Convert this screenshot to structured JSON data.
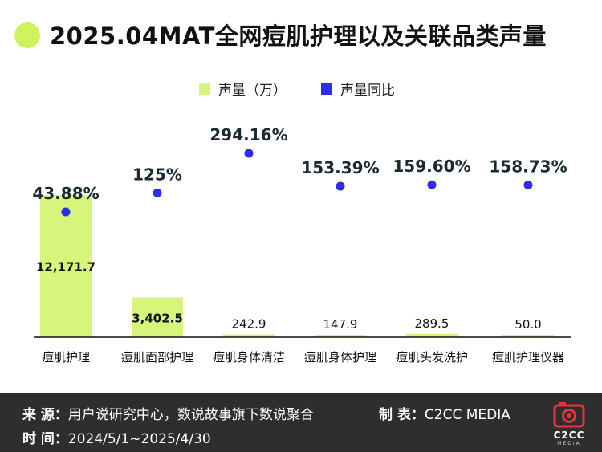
{
  "header": {
    "title": "2025.04MAT全网痘肌护理以及关联品类声量"
  },
  "legend": {
    "volume_label": "声量（万）",
    "yoy_label": "声量同比"
  },
  "colors": {
    "bar": "#d7f57a",
    "dot": "#2e2ee6",
    "accent": "#cdf45c",
    "footer_bg": "#2e2e2e"
  },
  "chart_data": {
    "type": "bar",
    "title": "2025.04MAT全网痘肌护理以及关联品类声量",
    "categories": [
      "痘肌护理",
      "痘肌面部护理",
      "痘肌身体清洁",
      "痘肌身体护理",
      "痘肌头发洗护",
      "痘肌护理仪器"
    ],
    "series": [
      {
        "name": "声量（万）",
        "type": "bar",
        "values": [
          12171.7,
          3402.5,
          242.9,
          147.9,
          289.5,
          50.0
        ],
        "labels": [
          "12,171.7",
          "3,402.5",
          "242.9",
          "147.9",
          "289.5",
          "50.0"
        ]
      },
      {
        "name": "声量同比",
        "type": "scatter",
        "values": [
          43.88,
          125,
          294.16,
          153.39,
          159.6,
          158.73
        ],
        "labels": [
          "43.88%",
          "125%",
          "294.16%",
          "153.39%",
          "159.60%",
          "158.73%"
        ]
      }
    ],
    "xlabel": "",
    "ylabel": "",
    "ylim_bar": [
      0,
      12171.7
    ],
    "ylim_yoy": [
      0,
      294.16
    ],
    "grid": false,
    "legend_position": "top-center"
  },
  "footer": {
    "source_label": "来  源：",
    "source_value": "用户说研究中心，数说故事旗下数说聚合",
    "maker_label": "制  表：",
    "maker_value": "C2CC  MEDIA",
    "time_label": "时  间：",
    "time_value": "2024/5/1~2025/4/30",
    "logo_text": "C2CC",
    "logo_sub": "MEDIA",
    "logo_icon": "camera-icon"
  }
}
